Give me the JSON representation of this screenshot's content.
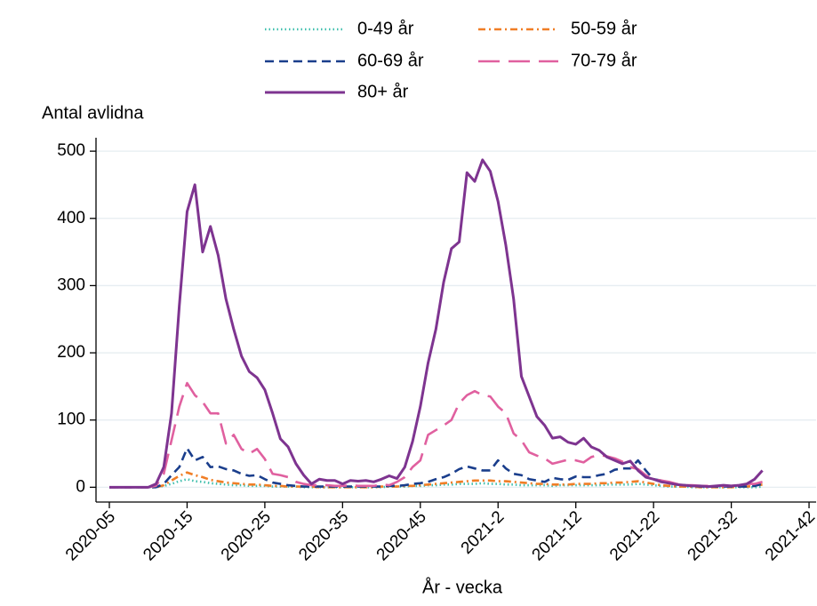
{
  "chart_data": {
    "type": "line",
    "y_label": "Antal avlidna",
    "x_label": "År - vecka",
    "categories": [
      "2020-05",
      null,
      null,
      null,
      null,
      null,
      null,
      null,
      null,
      null,
      "2020-15",
      null,
      null,
      null,
      null,
      null,
      null,
      null,
      null,
      null,
      "2020-25",
      null,
      null,
      null,
      null,
      null,
      null,
      null,
      null,
      null,
      "2020-35",
      null,
      null,
      null,
      null,
      null,
      null,
      null,
      null,
      null,
      "2020-45",
      null,
      null,
      null,
      null,
      null,
      null,
      null,
      null,
      null,
      "2021-2",
      null,
      null,
      null,
      null,
      null,
      null,
      null,
      null,
      null,
      "2021-12",
      null,
      null,
      null,
      null,
      null,
      null,
      null,
      null,
      null,
      "2021-22",
      null,
      null,
      null,
      null,
      null,
      null,
      null,
      null,
      null,
      "2021-32",
      null,
      null,
      null,
      null,
      null,
      null,
      null,
      null,
      null,
      "2021-42"
    ],
    "ylim": [
      -22,
      520
    ],
    "yticks": [
      0,
      100,
      200,
      300,
      400,
      500
    ],
    "grid": true,
    "series": [
      {
        "name": "0-49 år",
        "color": "#3fbfad",
        "style": "dotted",
        "values": [
          0,
          0,
          0,
          0,
          0,
          0,
          0,
          2,
          5,
          9,
          12,
          9,
          8,
          6,
          5,
          4,
          3,
          3,
          2,
          2,
          2,
          1,
          1,
          1,
          1,
          0,
          0,
          0,
          0,
          0,
          0,
          0,
          0,
          0,
          0,
          0,
          1,
          1,
          1,
          2,
          2,
          3,
          3,
          4,
          4,
          5,
          5,
          5,
          6,
          5,
          5,
          4,
          4,
          3,
          3,
          3,
          3,
          2,
          3,
          3,
          3,
          3,
          3,
          3,
          4,
          4,
          4,
          4,
          5,
          4,
          3,
          2,
          1,
          1,
          1,
          0,
          0,
          0,
          0,
          0,
          0,
          0,
          0,
          0,
          1,
          null,
          null,
          null,
          null,
          null,
          null
        ]
      },
      {
        "name": "50-59 år",
        "color": "#f07e26",
        "style": "dashdot",
        "values": [
          0,
          0,
          0,
          0,
          0,
          0,
          0,
          3,
          10,
          17,
          22,
          18,
          15,
          11,
          9,
          7,
          6,
          5,
          4,
          4,
          3,
          2,
          2,
          1,
          1,
          1,
          1,
          0,
          0,
          0,
          0,
          0,
          0,
          0,
          0,
          1,
          1,
          1,
          2,
          2,
          3,
          4,
          5,
          6,
          7,
          8,
          9,
          10,
          10,
          10,
          9,
          9,
          8,
          7,
          6,
          5,
          5,
          4,
          4,
          4,
          5,
          5,
          5,
          6,
          6,
          7,
          7,
          8,
          9,
          7,
          5,
          3,
          2,
          1,
          1,
          1,
          0,
          0,
          0,
          0,
          0,
          1,
          1,
          2,
          4,
          null,
          null,
          null,
          null,
          null,
          null
        ]
      },
      {
        "name": "60-69 år",
        "color": "#1a3e8c",
        "style": "dashed",
        "values": [
          0,
          0,
          0,
          0,
          0,
          0,
          0,
          5,
          18,
          30,
          58,
          40,
          45,
          30,
          31,
          27,
          25,
          20,
          17,
          18,
          12,
          7,
          5,
          3,
          2,
          1,
          1,
          1,
          1,
          1,
          1,
          1,
          1,
          1,
          1,
          1,
          2,
          2,
          3,
          5,
          6,
          8,
          12,
          15,
          20,
          27,
          31,
          28,
          25,
          25,
          40,
          28,
          20,
          18,
          12,
          10,
          8,
          14,
          12,
          11,
          16,
          15,
          15,
          18,
          20,
          26,
          28,
          28,
          40,
          25,
          12,
          10,
          6,
          4,
          3,
          2,
          1,
          1,
          1,
          1,
          1,
          1,
          1,
          2,
          5,
          null,
          null,
          null,
          null,
          null,
          null
        ]
      },
      {
        "name": "70-79 år",
        "color": "#e0609f",
        "style": "longdash",
        "values": [
          0,
          0,
          0,
          0,
          0,
          0,
          2,
          20,
          70,
          120,
          155,
          137,
          127,
          110,
          110,
          65,
          78,
          57,
          50,
          57,
          42,
          20,
          18,
          15,
          8,
          5,
          3,
          3,
          3,
          2,
          2,
          3,
          2,
          2,
          2,
          4,
          3,
          8,
          15,
          30,
          40,
          78,
          85,
          92,
          100,
          125,
          137,
          143,
          137,
          135,
          120,
          110,
          80,
          70,
          52,
          47,
          43,
          35,
          38,
          41,
          40,
          37,
          45,
          48,
          46,
          43,
          38,
          30,
          27,
          18,
          12,
          10,
          8,
          5,
          3,
          3,
          2,
          2,
          2,
          2,
          2,
          3,
          5,
          5,
          8,
          null,
          null,
          null,
          null,
          null,
          null
        ]
      },
      {
        "name": "80+ år",
        "color": "#7e3490",
        "style": "solid",
        "values": [
          0,
          0,
          0,
          0,
          0,
          0,
          5,
          30,
          110,
          270,
          410,
          450,
          350,
          388,
          345,
          280,
          235,
          195,
          172,
          163,
          145,
          110,
          72,
          60,
          35,
          18,
          5,
          12,
          10,
          10,
          5,
          10,
          9,
          10,
          8,
          12,
          17,
          13,
          30,
          68,
          120,
          185,
          235,
          305,
          355,
          365,
          468,
          455,
          487,
          470,
          425,
          360,
          280,
          165,
          135,
          105,
          92,
          73,
          75,
          67,
          64,
          73,
          60,
          55,
          45,
          40,
          35,
          39,
          25,
          15,
          12,
          8,
          6,
          4,
          3,
          2,
          2,
          1,
          2,
          3,
          2,
          3,
          5,
          12,
          25,
          null,
          null,
          null,
          null,
          null,
          null
        ]
      }
    ]
  }
}
